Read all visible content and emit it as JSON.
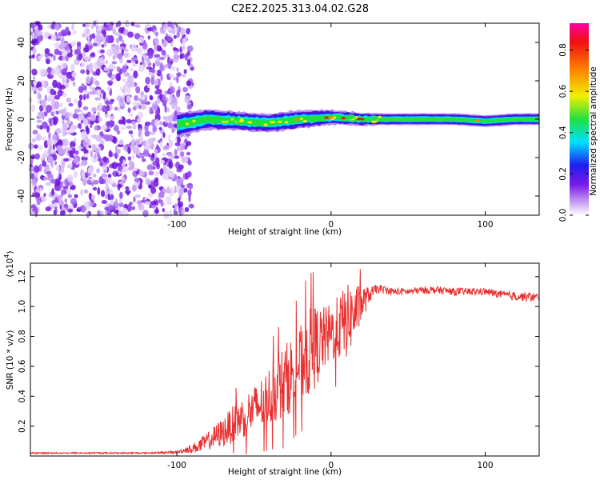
{
  "title": "C2E2.2025.313.04.02.G28",
  "chart_data": [
    {
      "type": "heatmap",
      "xlabel": "Height of straight line (km)",
      "ylabel": "Frequency (Hz)",
      "xlim": [
        -195,
        135
      ],
      "ylim": [
        -50,
        50
      ],
      "x_ticks": [
        -100,
        0,
        100
      ],
      "y_ticks": [
        -40,
        -20,
        0,
        20,
        40
      ],
      "x_tick_labels": [
        "-100",
        "0",
        "100"
      ],
      "y_tick_labels": [
        "-40",
        "-20",
        "0",
        "20",
        "40"
      ],
      "noise_region": {
        "x": [
          -195,
          -90
        ],
        "freq": [
          -50,
          50
        ]
      },
      "signal_band": {
        "x": [
          -100,
          -80,
          -60,
          -40,
          -20,
          0,
          20,
          40,
          60,
          80,
          100,
          120,
          135
        ],
        "center_freq": [
          -3,
          0,
          -1,
          -2,
          0,
          1,
          0,
          0,
          0,
          0,
          -1,
          0,
          0
        ],
        "half_width": [
          6,
          5,
          4.5,
          4.5,
          4.5,
          3.5,
          3,
          3,
          3,
          3,
          3,
          3,
          3
        ]
      },
      "colorbar": {
        "label": "Normalized spectral amplitude",
        "range": [
          0,
          0.93
        ],
        "ticks": [
          0.0,
          0.2,
          0.4,
          0.6,
          0.8
        ],
        "tick_labels": [
          "0.0",
          "0.2",
          "0.4",
          "0.6",
          "0.8"
        ],
        "colors": [
          "#ffffff",
          "#cfa8f5",
          "#7a1be6",
          "#1d1df0",
          "#00e0ff",
          "#20e040",
          "#f0f000",
          "#ff8000",
          "#f01010",
          "#ff00a0"
        ]
      }
    },
    {
      "type": "line",
      "xlabel": "Height of straight line (km)",
      "ylabel": "SNR (10 * v/v)",
      "y_multiplier": "(x10",
      "y_multiplier_exp": "4",
      "y_multiplier_close": ")",
      "xlim": [
        -195,
        135
      ],
      "ylim": [
        0,
        1.29
      ],
      "x_ticks": [
        -100,
        0,
        100
      ],
      "x_tick_labels": [
        "-100",
        "0",
        "100"
      ],
      "y_ticks": [
        0.2,
        0.4,
        0.6,
        0.8,
        1.0,
        1.2
      ],
      "y_tick_labels": [
        "0.2",
        "0.4",
        "0.6",
        "0.8",
        "1.0",
        "1.2"
      ],
      "series": [
        {
          "name": "SNR",
          "color": "#e83030",
          "x": [
            -195,
            -180,
            -160,
            -140,
            -120,
            -100,
            -95,
            -90,
            -85,
            -80,
            -75,
            -70,
            -65,
            -60,
            -55,
            -50,
            -45,
            -40,
            -35,
            -30,
            -25,
            -20,
            -15,
            -10,
            -5,
            0,
            5,
            10,
            15,
            20,
            25,
            30,
            40,
            50,
            60,
            70,
            80,
            90,
            100,
            110,
            120,
            135
          ],
          "mean": [
            0.02,
            0.02,
            0.02,
            0.02,
            0.02,
            0.025,
            0.04,
            0.05,
            0.07,
            0.1,
            0.13,
            0.16,
            0.2,
            0.24,
            0.28,
            0.31,
            0.35,
            0.4,
            0.45,
            0.5,
            0.56,
            0.62,
            0.68,
            0.73,
            0.78,
            0.82,
            0.86,
            0.9,
            0.95,
            1.02,
            1.08,
            1.12,
            1.1,
            1.1,
            1.11,
            1.11,
            1.1,
            1.1,
            1.1,
            1.08,
            1.07,
            1.06
          ],
          "noise": [
            0.005,
            0.005,
            0.005,
            0.005,
            0.005,
            0.008,
            0.02,
            0.03,
            0.05,
            0.06,
            0.08,
            0.1,
            0.12,
            0.13,
            0.15,
            0.16,
            0.18,
            0.2,
            0.22,
            0.25,
            0.25,
            0.25,
            0.3,
            0.28,
            0.22,
            0.2,
            0.22,
            0.25,
            0.2,
            0.12,
            0.05,
            0.03,
            0.025,
            0.025,
            0.025,
            0.025,
            0.025,
            0.025,
            0.025,
            0.025,
            0.03,
            0.03
          ]
        }
      ]
    }
  ]
}
